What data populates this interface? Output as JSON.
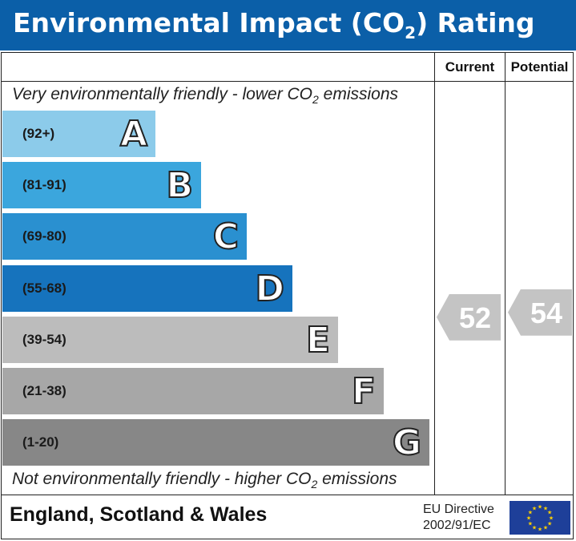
{
  "header": {
    "title_main": "Environmental Impact (CO",
    "title_sub": "2",
    "title_end": ") Rating"
  },
  "columns": {
    "current": "Current",
    "potential": "Potential"
  },
  "captions": {
    "top_main": "Very environmentally friendly - lower CO",
    "top_sub": "2",
    "top_end": " emissions",
    "bottom_main": "Not environmentally friendly - higher CO",
    "bottom_sub": "2",
    "bottom_end": " emissions"
  },
  "footer": {
    "region": "England, Scotland & Wales",
    "directive_line1": "EU Directive",
    "directive_line2": "2002/91/EC"
  },
  "chart_data": {
    "type": "bar",
    "bands": [
      {
        "range": "(92+)",
        "letter": "A",
        "color": "#8ccbea"
      },
      {
        "range": "(81-91)",
        "letter": "B",
        "color": "#3ba6dd"
      },
      {
        "range": "(69-80)",
        "letter": "C",
        "color": "#2a90d0"
      },
      {
        "range": "(55-68)",
        "letter": "D",
        "color": "#1673bd"
      },
      {
        "range": "(39-54)",
        "letter": "E",
        "color": "#bcbcbc"
      },
      {
        "range": "(21-38)",
        "letter": "F",
        "color": "#a7a7a7"
      },
      {
        "range": "(1-20)",
        "letter": "G",
        "color": "#878787"
      }
    ],
    "current": 52,
    "potential": 54,
    "arrow_color": "#c4c4c4"
  }
}
